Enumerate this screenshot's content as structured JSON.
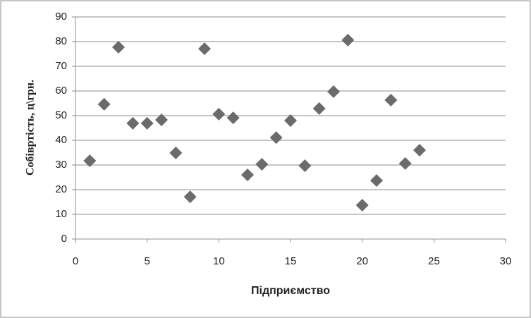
{
  "chart_data": {
    "type": "scatter",
    "x_label": "Підприємство",
    "y_label": "Собівртість, ц\\грн.",
    "color": "#6b6b6b",
    "x": [
      1,
      2,
      3,
      4,
      5,
      6,
      7,
      8,
      9,
      10,
      11,
      12,
      13,
      14,
      15,
      16,
      17,
      18,
      19,
      20,
      21,
      22,
      23,
      24
    ],
    "values": [
      31.7,
      54.6,
      77.7,
      46.9,
      46.9,
      48.3,
      34.9,
      17.1,
      77.1,
      50.6,
      49.1,
      26,
      30.3,
      41.1,
      48,
      29.7,
      52.9,
      59.7,
      80.6,
      13.7,
      23.7,
      56.3,
      30.6,
      36
    ],
    "xlim": [
      0,
      30
    ],
    "xticks": [
      0,
      5,
      10,
      15,
      20,
      25,
      30
    ],
    "ylim": [
      0,
      90
    ],
    "yticks": [
      0,
      10,
      20,
      30,
      40,
      50,
      60,
      70,
      80,
      90
    ],
    "grid": true
  }
}
